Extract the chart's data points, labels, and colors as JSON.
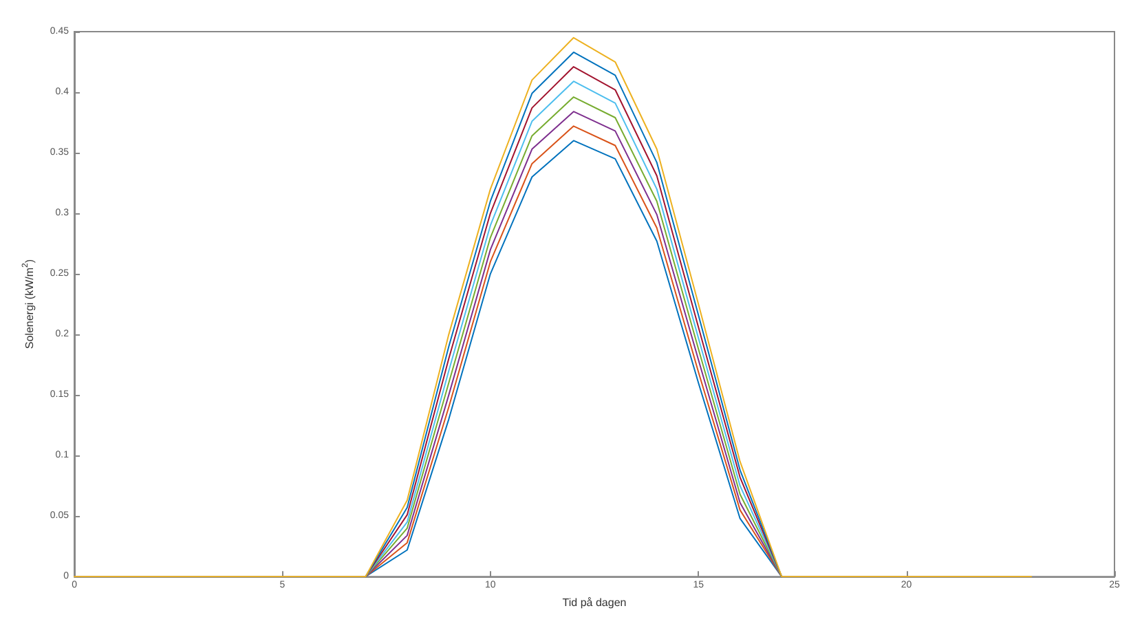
{
  "chart_data": {
    "type": "line",
    "xlabel": "Tid på dagen",
    "ylabel": "Solenergi (kW/m$^{2}$)",
    "x": [
      0,
      1,
      2,
      3,
      4,
      5,
      6,
      7,
      8,
      9,
      10,
      11,
      12,
      13,
      14,
      15,
      16,
      17,
      18,
      19,
      20,
      21,
      22,
      23
    ],
    "xlim": [
      0,
      25
    ],
    "xticks": [
      0,
      5,
      10,
      15,
      20,
      25
    ],
    "ylim": [
      0,
      0.45
    ],
    "yticks": [
      0,
      0.05,
      0.1,
      0.15,
      0.2,
      0.25,
      0.3,
      0.35,
      0.4,
      0.45
    ],
    "grid": false,
    "marker": "none",
    "line_style": "solid",
    "series": [
      {
        "color": "#0072bd",
        "values": [
          null,
          null,
          null,
          null,
          null,
          null,
          null,
          0,
          0.022,
          0.13,
          0.25,
          0.33,
          0.36,
          0.345,
          0.277,
          0.16,
          0.048,
          0,
          null,
          null,
          null,
          null,
          null,
          null
        ]
      },
      {
        "color": "#d95319",
        "values": [
          null,
          null,
          null,
          null,
          null,
          null,
          null,
          0,
          0.028,
          0.14,
          0.26,
          0.341,
          0.372,
          0.356,
          0.288,
          0.169,
          0.055,
          0,
          null,
          null,
          null,
          null,
          null,
          null
        ]
      },
      {
        "color": "#7e2f8e",
        "values": [
          null,
          null,
          null,
          null,
          null,
          null,
          null,
          0,
          0.034,
          0.15,
          0.27,
          0.353,
          0.384,
          0.368,
          0.299,
          0.179,
          0.061,
          0,
          null,
          null,
          null,
          null,
          null,
          null
        ]
      },
      {
        "color": "#77ac30",
        "values": [
          null,
          null,
          null,
          null,
          null,
          null,
          null,
          0,
          0.04,
          0.16,
          0.28,
          0.364,
          0.396,
          0.379,
          0.31,
          0.188,
          0.068,
          0,
          null,
          null,
          null,
          null,
          null,
          null
        ]
      },
      {
        "color": "#4dbeee",
        "values": [
          null,
          null,
          null,
          null,
          null,
          null,
          null,
          0,
          0.045,
          0.17,
          0.29,
          0.376,
          0.409,
          0.391,
          0.32,
          0.197,
          0.075,
          0,
          null,
          null,
          null,
          null,
          null,
          null
        ]
      },
      {
        "color": "#a2142f",
        "values": [
          null,
          null,
          null,
          null,
          null,
          null,
          null,
          0,
          0.051,
          0.18,
          0.3,
          0.387,
          0.421,
          0.402,
          0.331,
          0.206,
          0.082,
          0,
          null,
          null,
          null,
          null,
          null,
          null
        ]
      },
      {
        "color": "#0072bd",
        "values": [
          null,
          null,
          null,
          null,
          null,
          null,
          null,
          0,
          0.057,
          0.19,
          0.31,
          0.399,
          0.433,
          0.414,
          0.342,
          0.216,
          0.088,
          0,
          null,
          null,
          null,
          null,
          null,
          null
        ]
      },
      {
        "color": "#edb120",
        "values": [
          0,
          0,
          0,
          0,
          0,
          0,
          0,
          0,
          0.063,
          0.2,
          0.32,
          0.41,
          0.445,
          0.425,
          0.353,
          0.225,
          0.095,
          0,
          0,
          0,
          0,
          0,
          0,
          0
        ]
      }
    ]
  }
}
